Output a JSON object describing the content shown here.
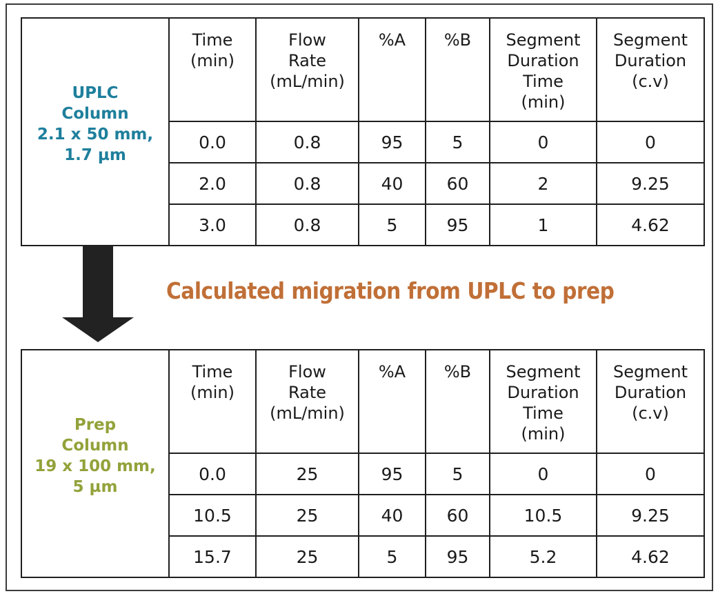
{
  "headers": [
    [
      "Time",
      "(min)"
    ],
    [
      "Flow",
      "Rate",
      "(mL/min)"
    ],
    [
      "%A"
    ],
    [
      "%B"
    ],
    [
      "Segment",
      "Duration",
      "Time",
      "(min)"
    ],
    [
      "Segment",
      "Duration",
      "(c.v)"
    ]
  ],
  "uplc": {
    "column_name": [
      "UPLC",
      "Column",
      "2.1 x 50 mm,",
      "1.7 µm"
    ],
    "rows": [
      [
        "0.0",
        "0.8",
        "95",
        "5",
        "0",
        "0"
      ],
      [
        "2.0",
        "0.8",
        "40",
        "60",
        "2",
        "9.25"
      ],
      [
        "3.0",
        "0.8",
        "5",
        "95",
        "1",
        "4.62"
      ]
    ]
  },
  "migration_text": "Calculated migration from UPLC to prep",
  "prep": {
    "column_name": [
      "Prep",
      "Column",
      "19 x 100 mm,",
      "5 µm"
    ],
    "rows": [
      [
        "0.0",
        "25",
        "95",
        "5",
        "0",
        "0"
      ],
      [
        "10.5",
        "25",
        "40",
        "60",
        "10.5",
        "9.25"
      ],
      [
        "15.7",
        "25",
        "5",
        "95",
        "5.2",
        "4.62"
      ]
    ]
  },
  "colors": {
    "uplc_label": "#1e7f9c",
    "prep_label": "#93a23a",
    "migration_label": "#c06f37",
    "arrow": "#222222"
  },
  "icons": {
    "flow_arrow": "down-arrow-icon"
  }
}
